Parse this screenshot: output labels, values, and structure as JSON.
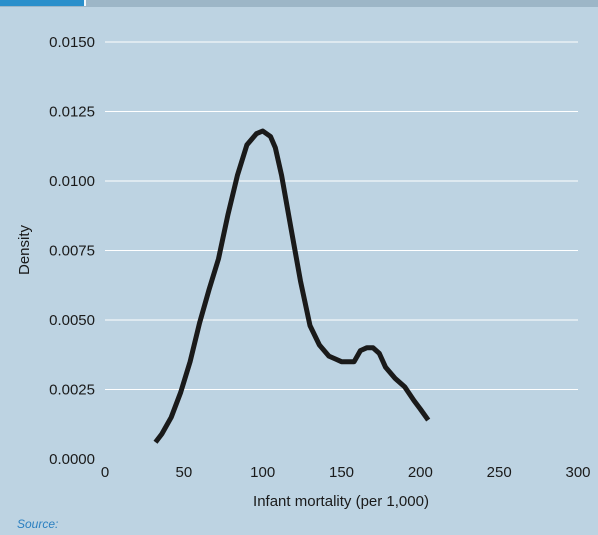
{
  "chart_data": {
    "type": "line",
    "title": "",
    "xlabel": "Infant mortality (per 1,000)",
    "ylabel": "Density",
    "xlim": [
      0,
      300
    ],
    "ylim": [
      0,
      0.015
    ],
    "x_ticks": [
      "0",
      "50",
      "100",
      "150",
      "200",
      "250",
      "300"
    ],
    "y_ticks": [
      "0.0000",
      "0.0025",
      "0.0050",
      "0.0075",
      "0.0100",
      "0.0125",
      "0.0150"
    ],
    "grid": "horizontal",
    "line_color": "#1a1a1a",
    "grid_color": "#ffffff",
    "background": "#bdd3e2",
    "series": [
      {
        "x": [
          32,
          36,
          42,
          48,
          54,
          60,
          66,
          72,
          78,
          84,
          90,
          96,
          100,
          105,
          108,
          112,
          118,
          124,
          130,
          136,
          142,
          146,
          150,
          154,
          158,
          162,
          166,
          170,
          174,
          178,
          184,
          190,
          196,
          200,
          205
        ],
        "y": [
          0.0006,
          0.0009,
          0.0015,
          0.0024,
          0.0035,
          0.0049,
          0.0061,
          0.0072,
          0.0088,
          0.0102,
          0.0113,
          0.0117,
          0.0118,
          0.0116,
          0.0112,
          0.0102,
          0.0083,
          0.0064,
          0.0048,
          0.0041,
          0.0037,
          0.0036,
          0.0035,
          0.0035,
          0.0035,
          0.0039,
          0.004,
          0.004,
          0.0038,
          0.0033,
          0.0029,
          0.0026,
          0.0021,
          0.0018,
          0.0014
        ]
      }
    ]
  },
  "footer": {
    "source_label": "Source:"
  }
}
